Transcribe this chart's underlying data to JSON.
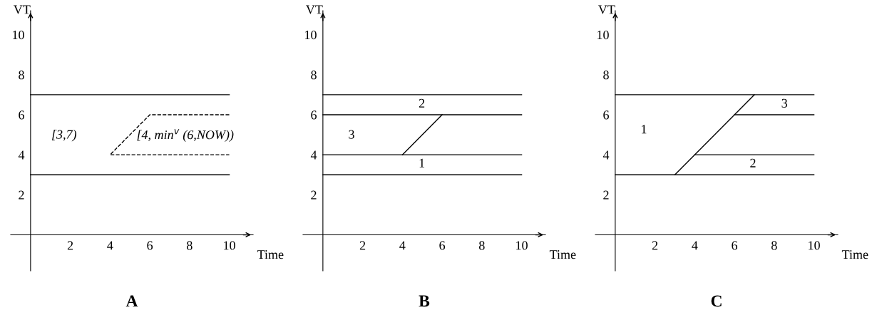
{
  "chart_data": [
    {
      "type": "line",
      "title": "A",
      "xlabel": "Time",
      "ylabel": "VT",
      "xlim": [
        -1,
        11.2
      ],
      "ylim": [
        -1.8,
        11.2
      ],
      "xticks": [
        2,
        4,
        6,
        8,
        10
      ],
      "yticks": [
        2,
        4,
        6,
        8,
        10
      ],
      "grid": false,
      "legend": false,
      "series": [
        {
          "color": "#000000",
          "x": [
            0,
            10
          ],
          "values": [
            7,
            7
          ]
        },
        {
          "color": "#000000",
          "x": [
            0,
            10
          ],
          "values": [
            3,
            3
          ]
        },
        {
          "color": "#000000",
          "line_style": "dashed",
          "x": [
            10,
            6,
            4,
            10
          ],
          "values": [
            6,
            6,
            4,
            4
          ]
        }
      ],
      "annotations": [
        "[3,7)",
        "[4, min$^{v}$ (6,NOW))"
      ]
    },
    {
      "type": "line",
      "title": "B",
      "xlabel": "Time",
      "ylabel": "VT",
      "xlim": [
        -1,
        11.2
      ],
      "ylim": [
        -1.8,
        11.2
      ],
      "xticks": [
        2,
        4,
        6,
        8,
        10
      ],
      "yticks": [
        2,
        4,
        6,
        8,
        10
      ],
      "grid": false,
      "legend": false,
      "series": [
        {
          "color": "#000000",
          "x": [
            0,
            10
          ],
          "values": [
            7,
            7
          ]
        },
        {
          "color": "#000000",
          "x": [
            0,
            10
          ],
          "values": [
            6,
            6
          ]
        },
        {
          "color": "#000000",
          "x": [
            0,
            10
          ],
          "values": [
            4,
            4
          ]
        },
        {
          "color": "#000000",
          "x": [
            0,
            10
          ],
          "values": [
            3,
            3
          ]
        },
        {
          "color": "#000000",
          "x": [
            4,
            6
          ],
          "values": [
            4,
            6
          ]
        }
      ],
      "annotations": [
        "2",
        "3",
        "1"
      ]
    },
    {
      "type": "line",
      "title": "C",
      "xlabel": "Time",
      "ylabel": "VT",
      "xlim": [
        -1,
        11.2
      ],
      "ylim": [
        -1.8,
        11.2
      ],
      "xticks": [
        2,
        4,
        6,
        8,
        10
      ],
      "yticks": [
        2,
        4,
        6,
        8,
        10
      ],
      "grid": false,
      "legend": false,
      "series": [
        {
          "color": "#000000",
          "x": [
            0,
            10
          ],
          "values": [
            7,
            7
          ]
        },
        {
          "color": "#000000",
          "x": [
            0,
            10
          ],
          "values": [
            3,
            3
          ]
        },
        {
          "color": "#000000",
          "x": [
            3,
            7
          ],
          "values": [
            3,
            7
          ]
        },
        {
          "color": "#000000",
          "x": [
            6,
            10
          ],
          "values": [
            6,
            6
          ]
        },
        {
          "color": "#000000",
          "x": [
            4,
            10
          ],
          "values": [
            4,
            4
          ]
        }
      ],
      "annotations": [
        "1",
        "3",
        "2"
      ]
    }
  ]
}
